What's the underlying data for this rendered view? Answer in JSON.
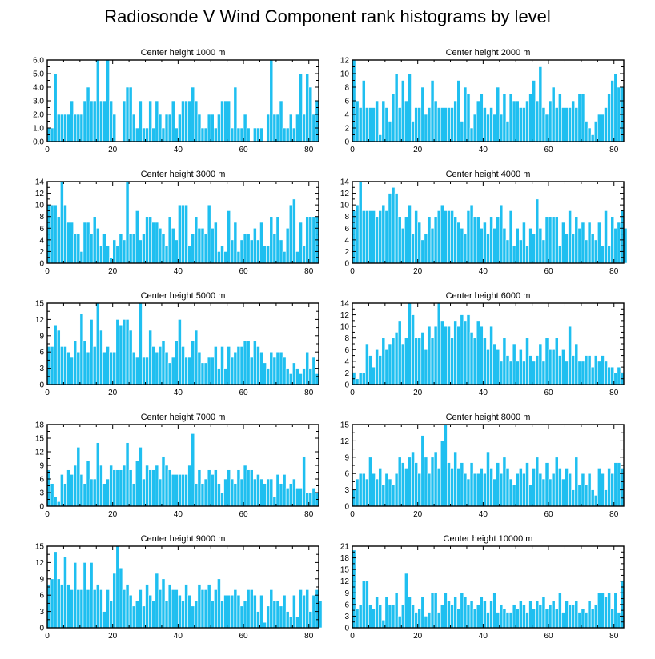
{
  "title": "Radiosonde V Wind Component rank histograms by level",
  "colors": {
    "bar": "#1fbff0",
    "axis": "#000000",
    "background": "#ffffff"
  },
  "chart_data": [
    {
      "type": "bar",
      "title": "Center height 1000 m",
      "xlim": [
        0,
        83
      ],
      "ylim": [
        0,
        6
      ],
      "xticks": [
        0,
        20,
        40,
        60,
        80
      ],
      "xtick_labels": [
        "0",
        "20",
        "40",
        "60",
        "80"
      ],
      "yticks": [
        0,
        1,
        2,
        3,
        4,
        5,
        6
      ],
      "ytick_labels": [
        "0.0",
        "1.0",
        "2.0",
        "3.0",
        "4.0",
        "5.0",
        "6.0"
      ],
      "values": [
        1,
        1,
        5,
        2,
        2,
        2,
        2,
        3,
        2,
        2,
        2,
        3,
        4,
        3,
        3,
        6,
        3,
        3,
        6,
        3,
        2,
        0,
        0,
        3,
        4,
        4,
        2,
        1,
        3,
        1,
        1,
        3,
        1,
        3,
        2,
        1,
        2,
        2,
        3,
        1,
        2,
        3,
        3,
        3,
        4,
        3,
        2,
        1,
        1,
        2,
        2,
        1,
        2,
        3,
        3,
        3,
        1,
        4,
        1,
        1,
        2,
        1,
        0,
        1,
        1,
        1,
        0,
        2,
        6,
        2,
        2,
        3,
        1,
        1,
        2,
        1,
        2,
        5,
        2,
        5,
        4,
        2,
        3
      ]
    },
    {
      "type": "bar",
      "title": "Center height 2000 m",
      "xlim": [
        0,
        83
      ],
      "ylim": [
        0,
        12
      ],
      "xticks": [
        0,
        20,
        40,
        60,
        80
      ],
      "xtick_labels": [
        "0",
        "20",
        "40",
        "60",
        "80"
      ],
      "yticks": [
        0,
        2,
        4,
        6,
        8,
        10,
        12
      ],
      "ytick_labels": [
        "0",
        "2",
        "4",
        "6",
        "8",
        "10",
        "12"
      ],
      "values": [
        12,
        6,
        5,
        9,
        5,
        5,
        5,
        6,
        1,
        6,
        5,
        3,
        7,
        10,
        5,
        9,
        6,
        10,
        3,
        5,
        5,
        8,
        4,
        5,
        9,
        6,
        5,
        5,
        5,
        5,
        5,
        6,
        9,
        3,
        8,
        7,
        2,
        4,
        6,
        7,
        5,
        4,
        5,
        4,
        8,
        4,
        7,
        3,
        7,
        6,
        6,
        5,
        5,
        6,
        7,
        9,
        6,
        11,
        5,
        4,
        6,
        8,
        5,
        7,
        5,
        5,
        5,
        6,
        5,
        7,
        7,
        3,
        2,
        1,
        3,
        4,
        4,
        5,
        7,
        9,
        10,
        8,
        8
      ]
    },
    {
      "type": "bar",
      "title": "Center height 3000 m",
      "xlim": [
        0,
        83
      ],
      "ylim": [
        0,
        14
      ],
      "xticks": [
        0,
        20,
        40,
        60,
        80
      ],
      "xtick_labels": [
        "0",
        "20",
        "40",
        "60",
        "80"
      ],
      "yticks": [
        0,
        2,
        4,
        6,
        8,
        10,
        12,
        14
      ],
      "ytick_labels": [
        "0",
        "2",
        "4",
        "6",
        "8",
        "10",
        "12",
        "14"
      ],
      "values": [
        10,
        10,
        10,
        8,
        14,
        10,
        7,
        7,
        5,
        5,
        2,
        7,
        7,
        5,
        8,
        6,
        3,
        5,
        3,
        1,
        4,
        3,
        5,
        4,
        14,
        5,
        5,
        9,
        4,
        5,
        8,
        8,
        7,
        7,
        6,
        5,
        3,
        8,
        6,
        4,
        10,
        10,
        10,
        3,
        5,
        8,
        6,
        6,
        5,
        10,
        6,
        7,
        2,
        3,
        2,
        9,
        4,
        7,
        2,
        4,
        5,
        5,
        4,
        6,
        4,
        7,
        3,
        3,
        8,
        5,
        8,
        4,
        2,
        6,
        10,
        11,
        2,
        7,
        3,
        8,
        8,
        8,
        8
      ]
    },
    {
      "type": "bar",
      "title": "Center height 4000 m",
      "xlim": [
        0,
        83
      ],
      "ylim": [
        0,
        14
      ],
      "xticks": [
        0,
        20,
        40,
        60,
        80
      ],
      "xtick_labels": [
        "0",
        "20",
        "40",
        "60",
        "80"
      ],
      "yticks": [
        0,
        2,
        4,
        6,
        8,
        10,
        12,
        14
      ],
      "ytick_labels": [
        "0",
        "2",
        "4",
        "6",
        "8",
        "10",
        "12",
        "14"
      ],
      "values": [
        9,
        10,
        14,
        9,
        9,
        9,
        9,
        8,
        9,
        10,
        9,
        12,
        13,
        12,
        8,
        6,
        8,
        10,
        5,
        9,
        7,
        4,
        5,
        8,
        6,
        8,
        9,
        10,
        9,
        9,
        9,
        8,
        7,
        6,
        5,
        9,
        10,
        8,
        8,
        6,
        7,
        5,
        8,
        6,
        8,
        10,
        6,
        4,
        9,
        3,
        6,
        4,
        7,
        3,
        6,
        5,
        11,
        6,
        4,
        8,
        8,
        8,
        8,
        3,
        7,
        5,
        9,
        5,
        8,
        6,
        7,
        4,
        7,
        5,
        4,
        7,
        3,
        9,
        3,
        8,
        6,
        7,
        9,
        6
      ]
    },
    {
      "type": "bar",
      "title": "Center height 5000 m",
      "xlim": [
        0,
        83
      ],
      "ylim": [
        0,
        15
      ],
      "xticks": [
        0,
        20,
        40,
        60,
        80
      ],
      "xtick_labels": [
        "0",
        "20",
        "40",
        "60",
        "80"
      ],
      "yticks": [
        0,
        3,
        6,
        9,
        12,
        15
      ],
      "ytick_labels": [
        "0",
        "3",
        "6",
        "9",
        "12",
        "15"
      ],
      "values": [
        7,
        7,
        11,
        10,
        7,
        7,
        6,
        5,
        8,
        6,
        13,
        8,
        6,
        12,
        7,
        15,
        10,
        6,
        7,
        6,
        6,
        12,
        11,
        12,
        12,
        10,
        6,
        5,
        15,
        5,
        5,
        10,
        7,
        6,
        7,
        8,
        6,
        4,
        5,
        8,
        12,
        7,
        5,
        5,
        8,
        10,
        6,
        4,
        4,
        5,
        5,
        7,
        3,
        7,
        3,
        7,
        5,
        6,
        7,
        7,
        8,
        8,
        5,
        8,
        7,
        6,
        4,
        3,
        6,
        5,
        6,
        6,
        5,
        3,
        2,
        4,
        3,
        2,
        3,
        6,
        3,
        5,
        2
      ]
    },
    {
      "type": "bar",
      "title": "Center height 6000 m",
      "xlim": [
        0,
        83
      ],
      "ylim": [
        0,
        14
      ],
      "xticks": [
        0,
        20,
        40,
        60,
        80
      ],
      "xtick_labels": [
        "0",
        "20",
        "40",
        "60",
        "80"
      ],
      "yticks": [
        0,
        2,
        4,
        6,
        8,
        10,
        12,
        14
      ],
      "ytick_labels": [
        "0",
        "2",
        "4",
        "6",
        "8",
        "10",
        "12",
        "14"
      ],
      "values": [
        2,
        1,
        2,
        2,
        7,
        5,
        3,
        6,
        5,
        8,
        6,
        7,
        8,
        9,
        11,
        7,
        8,
        14,
        12,
        8,
        8,
        9,
        6,
        10,
        8,
        10,
        14,
        11,
        10,
        10,
        8,
        11,
        10,
        12,
        11,
        12,
        9,
        8,
        11,
        10,
        8,
        6,
        10,
        7,
        6,
        4,
        8,
        5,
        4,
        7,
        4,
        6,
        4,
        8,
        5,
        4,
        5,
        7,
        4,
        8,
        6,
        6,
        8,
        5,
        6,
        4,
        10,
        5,
        7,
        4,
        4,
        5,
        5,
        3,
        5,
        4,
        5,
        4,
        3,
        3,
        2,
        3,
        2
      ]
    },
    {
      "type": "bar",
      "title": "Center height 7000 m",
      "xlim": [
        0,
        83
      ],
      "ylim": [
        0,
        18
      ],
      "xticks": [
        0,
        20,
        40,
        60,
        80
      ],
      "xtick_labels": [
        "0",
        "20",
        "40",
        "60",
        "80"
      ],
      "yticks": [
        0,
        3,
        6,
        9,
        12,
        15,
        18
      ],
      "ytick_labels": [
        "0",
        "3",
        "6",
        "9",
        "12",
        "15",
        "18"
      ],
      "values": [
        8,
        5,
        2,
        1,
        7,
        5,
        8,
        7,
        9,
        13,
        7,
        5,
        10,
        6,
        6,
        14,
        9,
        5,
        6,
        9,
        8,
        8,
        8,
        9,
        14,
        8,
        5,
        10,
        13,
        6,
        9,
        8,
        8,
        9,
        6,
        11,
        9,
        8,
        7,
        7,
        7,
        7,
        7,
        9,
        16,
        5,
        8,
        5,
        6,
        8,
        7,
        8,
        5,
        3,
        6,
        8,
        6,
        5,
        8,
        6,
        9,
        8,
        8,
        6,
        7,
        6,
        5,
        6,
        6,
        2,
        7,
        5,
        7,
        4,
        5,
        6,
        4,
        4,
        11,
        3,
        3,
        4,
        3
      ]
    },
    {
      "type": "bar",
      "title": "Center height 8000 m",
      "xlim": [
        0,
        83
      ],
      "ylim": [
        0,
        15
      ],
      "xticks": [
        0,
        20,
        40,
        60,
        80
      ],
      "xtick_labels": [
        "0",
        "20",
        "40",
        "60",
        "80"
      ],
      "yticks": [
        0,
        3,
        6,
        9,
        12,
        15
      ],
      "ytick_labels": [
        "0",
        "3",
        "6",
        "9",
        "12",
        "15"
      ],
      "values": [
        3,
        5,
        6,
        6,
        5,
        9,
        6,
        5,
        7,
        4,
        6,
        5,
        4,
        6,
        9,
        8,
        7,
        9,
        10,
        8,
        6,
        13,
        9,
        6,
        9,
        10,
        7,
        12,
        15,
        8,
        7,
        10,
        7,
        8,
        6,
        5,
        8,
        6,
        6,
        7,
        6,
        10,
        7,
        5,
        8,
        6,
        9,
        7,
        5,
        4,
        6,
        7,
        6,
        8,
        4,
        7,
        9,
        6,
        5,
        8,
        5,
        6,
        9,
        7,
        5,
        7,
        6,
        3,
        9,
        4,
        6,
        4,
        6,
        3,
        2,
        7,
        6,
        3,
        7,
        6,
        8,
        8,
        7
      ]
    },
    {
      "type": "bar",
      "title": "Center height 9000 m",
      "xlim": [
        0,
        83
      ],
      "ylim": [
        0,
        15
      ],
      "xticks": [
        0,
        20,
        40,
        60,
        80
      ],
      "xtick_labels": [
        "0",
        "20",
        "40",
        "60",
        "80"
      ],
      "yticks": [
        0,
        3,
        6,
        9,
        12,
        15
      ],
      "ytick_labels": [
        "0",
        "3",
        "6",
        "9",
        "12",
        "15"
      ],
      "values": [
        8,
        9,
        14,
        9,
        8,
        13,
        8,
        7,
        12,
        7,
        7,
        12,
        7,
        12,
        7,
        8,
        7,
        3,
        7,
        5,
        10,
        15,
        11,
        7,
        8,
        6,
        4,
        5,
        7,
        4,
        8,
        6,
        5,
        10,
        7,
        9,
        5,
        8,
        7,
        7,
        6,
        5,
        8,
        6,
        4,
        5,
        8,
        7,
        7,
        8,
        5,
        7,
        9,
        5,
        6,
        6,
        6,
        7,
        6,
        4,
        5,
        7,
        7,
        6,
        3,
        6,
        1,
        4,
        7,
        5,
        5,
        4,
        6,
        3,
        2,
        6,
        2,
        7,
        6,
        7,
        3,
        6,
        7,
        5
      ]
    },
    {
      "type": "bar",
      "title": "Center height 10000 m",
      "xlim": [
        0,
        83
      ],
      "ylim": [
        0,
        21
      ],
      "xticks": [
        0,
        20,
        40,
        60,
        80
      ],
      "xtick_labels": [
        "0",
        "20",
        "40",
        "60",
        "80"
      ],
      "yticks": [
        0,
        3,
        6,
        9,
        12,
        15,
        18,
        21
      ],
      "ytick_labels": [
        "0",
        "3",
        "6",
        "9",
        "12",
        "15",
        "18",
        "21"
      ],
      "values": [
        20,
        5,
        6,
        12,
        12,
        6,
        5,
        8,
        6,
        2,
        8,
        6,
        6,
        9,
        3,
        6,
        14,
        8,
        6,
        4,
        5,
        8,
        3,
        4,
        9,
        9,
        4,
        6,
        9,
        7,
        6,
        8,
        5,
        9,
        8,
        6,
        7,
        5,
        6,
        8,
        7,
        4,
        7,
        9,
        4,
        6,
        5,
        4,
        4,
        6,
        5,
        7,
        6,
        4,
        7,
        5,
        7,
        6,
        8,
        5,
        6,
        7,
        5,
        9,
        4,
        7,
        6,
        6,
        7,
        4,
        5,
        4,
        7,
        5,
        6,
        9,
        9,
        8,
        9,
        5,
        9,
        4,
        12
      ]
    }
  ]
}
